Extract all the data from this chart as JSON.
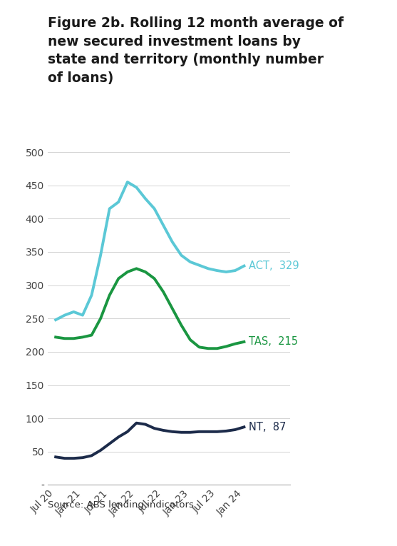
{
  "title_line1": "Figure 2b. Rolling 12 month average of",
  "title_line2": "new secured investment loans by",
  "title_line3": "state and territory (monthly number",
  "title_line4": "of loans)",
  "source": "Source: ABS lending indicators",
  "background_color": "#ffffff",
  "plot_bg_color": "#ffffff",
  "x_labels": [
    "Jul 20",
    "Jan 21",
    "Jul 21",
    "Jan 22",
    "Jul 22",
    "Jan 23",
    "Jul 23",
    "Jan 24"
  ],
  "ylim": [
    0,
    500
  ],
  "yticks": [
    0,
    50,
    100,
    150,
    200,
    250,
    300,
    350,
    400,
    450,
    500
  ],
  "ytick_labels": [
    "-",
    "50",
    "100",
    "150",
    "200",
    "250",
    "300",
    "350",
    "400",
    "450",
    "500"
  ],
  "ACT": {
    "color": "#5bc8d6",
    "label": "ACT,  329",
    "label_color": "#5bc8d6",
    "data": [
      248,
      255,
      260,
      255,
      285,
      345,
      415,
      425,
      455,
      447,
      430,
      415,
      390,
      365,
      345,
      335,
      330,
      325,
      322,
      320,
      322,
      329
    ]
  },
  "TAS": {
    "color": "#1a9641",
    "label": "TAS,  215",
    "label_color": "#1a9641",
    "data": [
      222,
      220,
      220,
      222,
      225,
      250,
      285,
      310,
      320,
      325,
      320,
      310,
      290,
      265,
      240,
      218,
      207,
      205,
      205,
      208,
      212,
      215
    ]
  },
  "NT": {
    "color": "#1c2b4a",
    "label": "NT,  87",
    "label_color": "#1c2b4a",
    "data": [
      42,
      40,
      40,
      41,
      44,
      52,
      62,
      72,
      80,
      93,
      91,
      85,
      82,
      80,
      79,
      79,
      80,
      80,
      80,
      81,
      83,
      87
    ]
  },
  "n_points": 22
}
